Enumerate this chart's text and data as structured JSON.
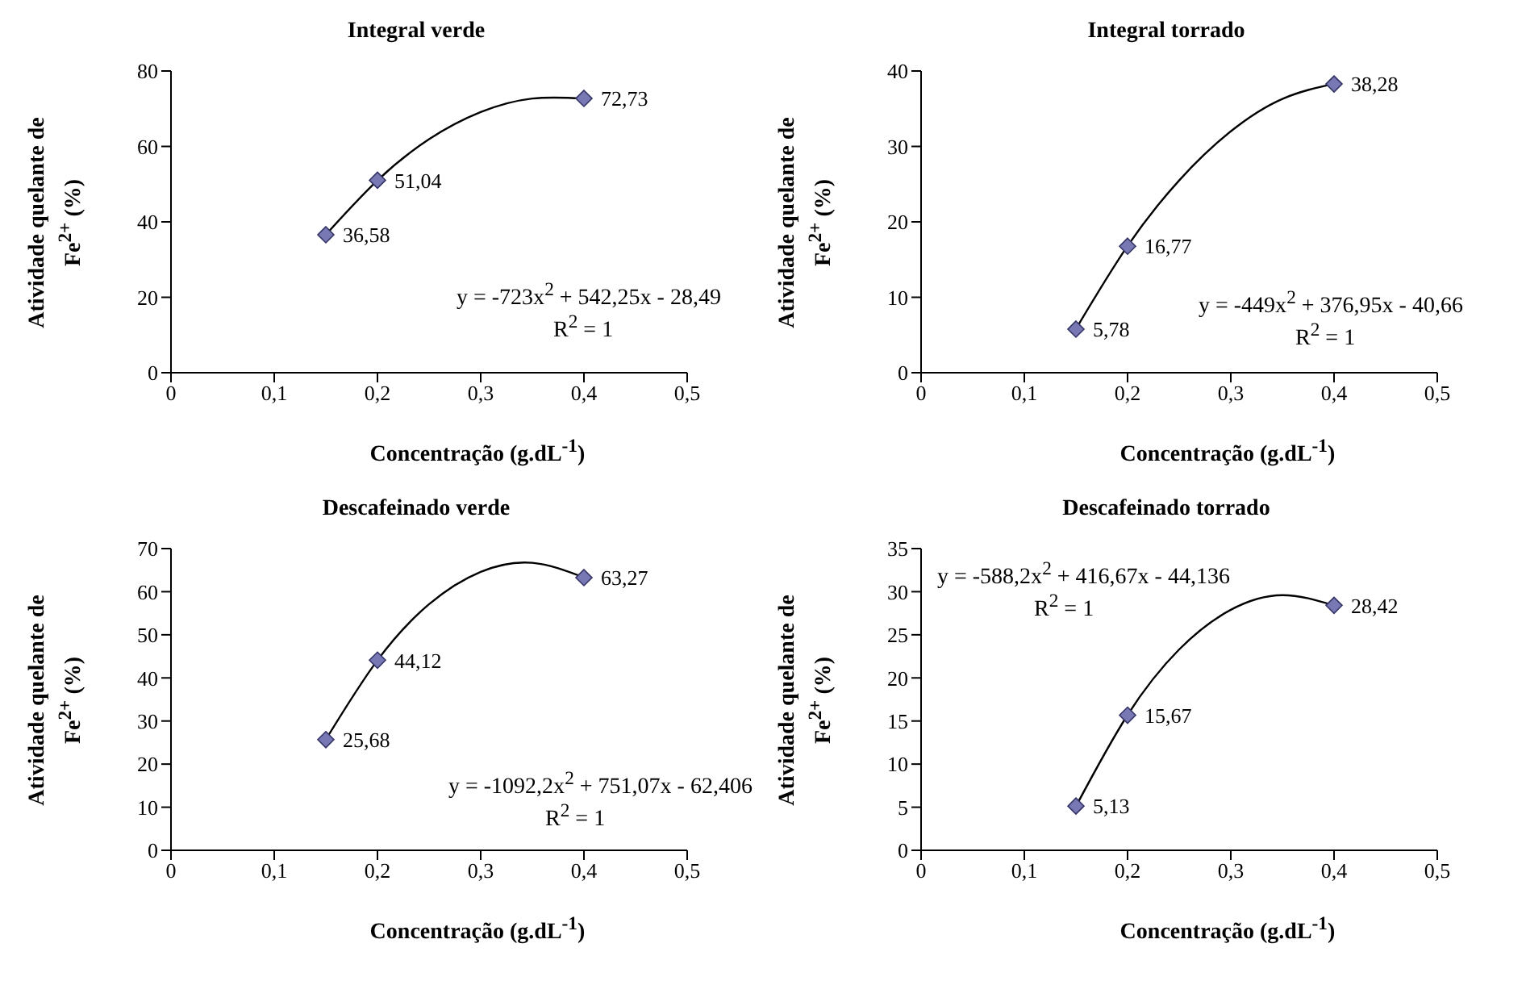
{
  "chart_data": [
    {
      "type": "scatter",
      "title": "Integral verde",
      "xlabel": "Concentração (g.dL$^{-1}$)",
      "ylabel": "Atividade quelante de Fe$^{2+}$ (%)",
      "xlim": [
        0,
        0.5
      ],
      "xticks": [
        {
          "value": 0,
          "label": "0"
        },
        {
          "value": 0.1,
          "label": "0,1"
        },
        {
          "value": 0.2,
          "label": "0,2"
        },
        {
          "value": 0.3,
          "label": "0,3"
        },
        {
          "value": 0.4,
          "label": "0,4"
        },
        {
          "value": 0.5,
          "label": "0,5"
        }
      ],
      "ylim": [
        0,
        80
      ],
      "yticks": [
        0,
        20,
        40,
        60,
        80
      ],
      "grid": false,
      "legend": false,
      "marker": "diamond",
      "series": [
        {
          "color": "#7878b4",
          "x": [
            0.15,
            0.2,
            0.4
          ],
          "values": [
            36.58,
            51.04,
            72.73
          ],
          "value_labels": [
            "36,58",
            "51,04",
            "72,73"
          ]
        },
        {
          "type": "line",
          "color": "#000000",
          "marker": "none",
          "x": [
            0.15,
            0.2,
            0.25,
            0.3,
            0.35,
            0.4
          ],
          "values": [
            36.6,
            51.0,
            61.9,
            69.1,
            72.7,
            72.7
          ]
        }
      ],
      "annotations": [
        "y = -723x$^{2}$ + 542,25x - 28,49",
        "R$^{2}$ = 1"
      ]
    },
    {
      "type": "scatter",
      "title": "Integral torrado",
      "xlabel": "Concentração (g.dL$^{-1}$)",
      "ylabel": "Atividade quelante de Fe$^{2+}$ (%)",
      "xlim": [
        0,
        0.5
      ],
      "xticks": [
        {
          "value": 0,
          "label": "0"
        },
        {
          "value": 0.1,
          "label": "0,1"
        },
        {
          "value": 0.2,
          "label": "0,2"
        },
        {
          "value": 0.3,
          "label": "0,3"
        },
        {
          "value": 0.4,
          "label": "0,4"
        },
        {
          "value": 0.5,
          "label": "0,5"
        }
      ],
      "ylim": [
        0,
        40
      ],
      "yticks": [
        0,
        10,
        20,
        30,
        40
      ],
      "grid": false,
      "legend": false,
      "marker": "diamond",
      "series": [
        {
          "color": "#7878b4",
          "x": [
            0.15,
            0.2,
            0.4
          ],
          "values": [
            5.78,
            16.77,
            38.28
          ],
          "value_labels": [
            "5,78",
            "16,77",
            "38,28"
          ]
        },
        {
          "type": "line",
          "color": "#000000",
          "marker": "none",
          "x": [
            0.15,
            0.2,
            0.25,
            0.3,
            0.35,
            0.4
          ],
          "values": [
            5.8,
            16.8,
            25.5,
            32.0,
            36.3,
            38.3
          ]
        }
      ],
      "annotations": [
        "y = -449x$^{2}$ + 376,95x - 40,66",
        "R$^{2}$ = 1"
      ]
    },
    {
      "type": "scatter",
      "title": "Descafeinado verde",
      "xlabel": "Concentração (g.dL$^{-1}$)",
      "ylabel": "Atividade quelante de Fe$^{2+}$ (%)",
      "xlim": [
        0,
        0.5
      ],
      "xticks": [
        {
          "value": 0,
          "label": "0"
        },
        {
          "value": 0.1,
          "label": "0,1"
        },
        {
          "value": 0.2,
          "label": "0,2"
        },
        {
          "value": 0.3,
          "label": "0,3"
        },
        {
          "value": 0.4,
          "label": "0,4"
        },
        {
          "value": 0.5,
          "label": "0,5"
        }
      ],
      "ylim": [
        0,
        70
      ],
      "yticks": [
        0,
        10,
        20,
        30,
        40,
        50,
        60,
        70
      ],
      "grid": false,
      "legend": false,
      "marker": "diamond",
      "series": [
        {
          "color": "#7878b4",
          "x": [
            0.15,
            0.2,
            0.4
          ],
          "values": [
            25.68,
            44.12,
            63.27
          ],
          "value_labels": [
            "25,68",
            "44,12",
            "63,27"
          ]
        },
        {
          "type": "line",
          "color": "#000000",
          "marker": "none",
          "x": [
            0.15,
            0.2,
            0.25,
            0.3,
            0.35,
            0.4
          ],
          "values": [
            25.7,
            44.1,
            57.1,
            64.6,
            66.7,
            63.3
          ]
        }
      ],
      "annotations": [
        "y = -1092,2x$^{2}$ + 751,07x - 62,406",
        "R$^{2}$ = 1"
      ]
    },
    {
      "type": "scatter",
      "title": "Descafeinado torrado",
      "xlabel": "Concentração (g.dL$^{-1}$)",
      "ylabel": "Atividade quelante de Fe$^{2+}$ (%)",
      "xlim": [
        0,
        0.5
      ],
      "xticks": [
        {
          "value": 0,
          "label": "0"
        },
        {
          "value": 0.1,
          "label": "0,1"
        },
        {
          "value": 0.2,
          "label": "0,2"
        },
        {
          "value": 0.3,
          "label": "0,3"
        },
        {
          "value": 0.4,
          "label": "0,4"
        },
        {
          "value": 0.5,
          "label": "0,5"
        }
      ],
      "ylim": [
        0,
        35
      ],
      "yticks": [
        0,
        5,
        10,
        15,
        20,
        25,
        30,
        35
      ],
      "grid": false,
      "legend": false,
      "marker": "diamond",
      "series": [
        {
          "color": "#7878b4",
          "x": [
            0.15,
            0.2,
            0.4
          ],
          "values": [
            5.13,
            15.67,
            28.42
          ],
          "value_labels": [
            "5,13",
            "15,67",
            "28,42"
          ]
        },
        {
          "type": "line",
          "color": "#000000",
          "marker": "none",
          "x": [
            0.15,
            0.2,
            0.25,
            0.3,
            0.35,
            0.4
          ],
          "values": [
            5.1,
            15.7,
            23.3,
            27.9,
            29.6,
            28.4
          ]
        }
      ],
      "annotations": [
        "y = -588,2x$^{2}$ + 416,67x - 44,136",
        "R$^{2}$ = 1"
      ]
    }
  ]
}
